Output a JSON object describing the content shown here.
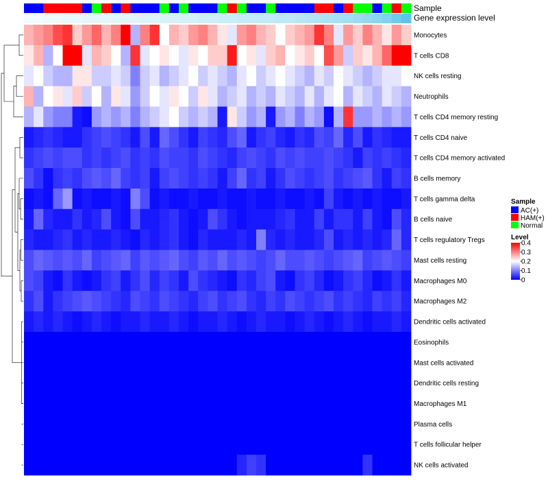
{
  "chart_data": {
    "type": "heatmap",
    "title": "",
    "xlabel": "",
    "ylabel": "",
    "annotation_tracks": [
      {
        "name": "Sample",
        "categories": [
          "AC(+)",
          "AC(+)",
          "HAM(+)",
          "HAM(+)",
          "HAM(+)",
          "HAM(+)",
          "AC(+)",
          "Normal",
          "HAM(+)",
          "AC(+)",
          "HAM(+)",
          "AC(+)",
          "AC(+)",
          "AC(+)",
          "Normal",
          "AC(+)",
          "Normal",
          "AC(+)",
          "AC(+)",
          "AC(+)",
          "Normal",
          "HAM(+)",
          "Normal",
          "AC(+)",
          "AC(+)",
          "Normal",
          "AC(+)",
          "AC(+)",
          "AC(+)",
          "AC(+)",
          "HAM(+)",
          "HAM(+)",
          "AC(+)",
          "HAM(+)",
          "Normal",
          "Normal",
          "AC(+)",
          "Normal",
          "HAM(+)",
          "Normal"
        ]
      },
      {
        "name": "Gene expression level",
        "values": [
          0.02,
          0.02,
          0.03,
          0.03,
          0.04,
          0.04,
          0.05,
          0.05,
          0.05,
          0.06,
          0.06,
          0.06,
          0.07,
          0.07,
          0.08,
          0.08,
          0.09,
          0.09,
          0.1,
          0.1,
          0.11,
          0.11,
          0.12,
          0.12,
          0.13,
          0.13,
          0.14,
          0.14,
          0.15,
          0.16,
          0.17,
          0.18,
          0.19,
          0.2,
          0.22,
          0.24,
          0.26,
          0.28,
          0.32,
          0.36
        ]
      }
    ],
    "rows": [
      "Monocytes",
      "T cells CD8",
      "NK cells resting",
      "Neutrophils",
      "T cells CD4 memory resting",
      "T cells CD4 naive",
      "T cells CD4 memory activated",
      "B cells memory",
      "T cells gamma delta",
      "B cells naive",
      "T cells regulatory  Tregs",
      "Mast cells resting",
      "Macrophages M0",
      "Macrophages M2",
      "Dendritic cells activated",
      "Eosinophils",
      "Mast cells activated",
      "Dendritic cells resting",
      "Macrophages M1",
      "Plasma cells",
      "T cells follicular helper",
      "NK cells activated"
    ],
    "n_columns": 40,
    "values": [
      [
        0.26,
        0.28,
        0.3,
        0.34,
        0.36,
        0.24,
        0.28,
        0.32,
        0.26,
        0.3,
        0.4,
        0.14,
        0.3,
        0.36,
        0.2,
        0.26,
        0.24,
        0.28,
        0.3,
        0.26,
        0.22,
        0.18,
        0.28,
        0.3,
        0.26,
        0.24,
        0.2,
        0.24,
        0.26,
        0.28,
        0.36,
        0.3,
        0.18,
        0.28,
        0.24,
        0.3,
        0.26,
        0.22,
        0.28,
        0.24
      ],
      [
        0.22,
        0.26,
        0.14,
        0.2,
        0.4,
        0.4,
        0.18,
        0.26,
        0.24,
        0.2,
        0.14,
        0.36,
        0.18,
        0.2,
        0.22,
        0.2,
        0.18,
        0.22,
        0.2,
        0.24,
        0.24,
        0.38,
        0.2,
        0.22,
        0.18,
        0.24,
        0.26,
        0.2,
        0.22,
        0.24,
        0.2,
        0.34,
        0.28,
        0.16,
        0.24,
        0.22,
        0.26,
        0.32,
        0.4,
        0.4
      ],
      [
        0.18,
        0.2,
        0.16,
        0.14,
        0.14,
        0.22,
        0.22,
        0.16,
        0.16,
        0.18,
        0.16,
        0.1,
        0.16,
        0.18,
        0.14,
        0.16,
        0.18,
        0.2,
        0.16,
        0.18,
        0.16,
        0.14,
        0.18,
        0.2,
        0.16,
        0.18,
        0.2,
        0.18,
        0.16,
        0.14,
        0.18,
        0.16,
        0.2,
        0.18,
        0.16,
        0.14,
        0.16,
        0.18,
        0.18,
        0.2
      ],
      [
        0.26,
        0.14,
        0.2,
        0.22,
        0.18,
        0.24,
        0.16,
        0.2,
        0.14,
        0.22,
        0.18,
        0.12,
        0.16,
        0.2,
        0.18,
        0.22,
        0.2,
        0.16,
        0.22,
        0.18,
        0.14,
        0.16,
        0.18,
        0.14,
        0.16,
        0.14,
        0.18,
        0.16,
        0.14,
        0.18,
        0.14,
        0.18,
        0.2,
        0.14,
        0.18,
        0.16,
        0.14,
        0.18,
        0.16,
        0.14
      ],
      [
        0.14,
        0.18,
        0.12,
        0.1,
        0.1,
        0.02,
        0.01,
        0.12,
        0.14,
        0.12,
        0.14,
        0.1,
        0.14,
        0.16,
        0.18,
        0.2,
        0.16,
        0.14,
        0.16,
        0.14,
        0.02,
        0.22,
        0.16,
        0.12,
        0.14,
        0.02,
        0.12,
        0.14,
        0.1,
        0.14,
        0.12,
        0.01,
        0.14,
        0.36,
        0.12,
        0.12,
        0.14,
        0.12,
        0.14,
        0.12
      ],
      [
        0.02,
        0.03,
        0.04,
        0.03,
        0.02,
        0.02,
        0.04,
        0.05,
        0.06,
        0.05,
        0.04,
        0.02,
        0.06,
        0.02,
        0.08,
        0.06,
        0.04,
        0.02,
        0.05,
        0.04,
        0.03,
        0.06,
        0.08,
        0.02,
        0.04,
        0.05,
        0.03,
        0.02,
        0.04,
        0.03,
        0.06,
        0.05,
        0.08,
        0.03,
        0.06,
        0.02,
        0.04,
        0.03,
        0.02,
        0.02
      ],
      [
        0.04,
        0.05,
        0.06,
        0.05,
        0.06,
        0.06,
        0.04,
        0.05,
        0.04,
        0.05,
        0.06,
        0.04,
        0.05,
        0.04,
        0.06,
        0.05,
        0.05,
        0.04,
        0.06,
        0.05,
        0.04,
        0.03,
        0.05,
        0.06,
        0.05,
        0.04,
        0.06,
        0.05,
        0.06,
        0.05,
        0.05,
        0.06,
        0.05,
        0.04,
        0.02,
        0.05,
        0.04,
        0.05,
        0.04,
        0.03
      ],
      [
        0.06,
        0.04,
        0.01,
        0.04,
        0.05,
        0.04,
        0.06,
        0.07,
        0.06,
        0.08,
        0.05,
        0.04,
        0.05,
        0.02,
        0.05,
        0.06,
        0.05,
        0.04,
        0.05,
        0.04,
        0.02,
        0.05,
        0.08,
        0.04,
        0.05,
        0.02,
        0.04,
        0.06,
        0.05,
        0.04,
        0.05,
        0.06,
        0.04,
        0.05,
        0.06,
        0.07,
        0.04,
        0.02,
        0.05,
        0.04
      ],
      [
        0.01,
        0.02,
        0.01,
        0.08,
        0.12,
        0.01,
        0.02,
        0.01,
        0.01,
        0.02,
        0.01,
        0.1,
        0.06,
        0.01,
        0.02,
        0.01,
        0.01,
        0.02,
        0.01,
        0.01,
        0.02,
        0.01,
        0.01,
        0.02,
        0.01,
        0.01,
        0.02,
        0.01,
        0.01,
        0.02,
        0.01,
        0.05,
        0.02,
        0.01,
        0.02,
        0.01,
        0.02,
        0.01,
        0.01,
        0.02
      ],
      [
        0.02,
        0.08,
        0.03,
        0.02,
        0.02,
        0.04,
        0.02,
        0.03,
        0.06,
        0.02,
        0.01,
        0.06,
        0.02,
        0.02,
        0.03,
        0.04,
        0.02,
        0.01,
        0.02,
        0.06,
        0.04,
        0.02,
        0.01,
        0.02,
        0.02,
        0.02,
        0.03,
        0.04,
        0.02,
        0.02,
        0.05,
        0.02,
        0.04,
        0.04,
        0.02,
        0.05,
        0.02,
        0.01,
        0.06,
        0.03
      ],
      [
        0.03,
        0.02,
        0.02,
        0.03,
        0.04,
        0.02,
        0.03,
        0.02,
        0.02,
        0.03,
        0.02,
        0.01,
        0.03,
        0.02,
        0.03,
        0.04,
        0.02,
        0.01,
        0.03,
        0.02,
        0.02,
        0.02,
        0.03,
        0.02,
        0.1,
        0.03,
        0.02,
        0.03,
        0.02,
        0.02,
        0.03,
        0.06,
        0.02,
        0.03,
        0.02,
        0.03,
        0.02,
        0.03,
        0.08,
        0.03
      ],
      [
        0.06,
        0.08,
        0.07,
        0.06,
        0.07,
        0.06,
        0.08,
        0.05,
        0.06,
        0.07,
        0.08,
        0.05,
        0.07,
        0.06,
        0.07,
        0.08,
        0.06,
        0.05,
        0.07,
        0.06,
        0.08,
        0.06,
        0.07,
        0.06,
        0.05,
        0.06,
        0.08,
        0.06,
        0.06,
        0.07,
        0.06,
        0.05,
        0.06,
        0.07,
        0.08,
        0.05,
        0.06,
        0.07,
        0.06,
        0.05
      ],
      [
        0.06,
        0.05,
        0.02,
        0.01,
        0.04,
        0.02,
        0.01,
        0.02,
        0.04,
        0.05,
        0.02,
        0.04,
        0.06,
        0.03,
        0.05,
        0.04,
        0.02,
        0.06,
        0.04,
        0.03,
        0.02,
        0.01,
        0.04,
        0.03,
        0.05,
        0.06,
        0.02,
        0.01,
        0.04,
        0.05,
        0.03,
        0.01,
        0.02,
        0.04,
        0.05,
        0.03,
        0.01,
        0.02,
        0.04,
        0.02
      ],
      [
        0.04,
        0.06,
        0.02,
        0.04,
        0.05,
        0.06,
        0.07,
        0.06,
        0.05,
        0.04,
        0.03,
        0.06,
        0.05,
        0.04,
        0.06,
        0.05,
        0.04,
        0.03,
        0.05,
        0.06,
        0.04,
        0.05,
        0.06,
        0.04,
        0.03,
        0.05,
        0.04,
        0.06,
        0.05,
        0.04,
        0.05,
        0.06,
        0.04,
        0.05,
        0.04,
        0.03,
        0.05,
        0.04,
        0.05,
        0.03
      ],
      [
        0.02,
        0.03,
        0.02,
        0.03,
        0.02,
        0.01,
        0.02,
        0.03,
        0.02,
        0.01,
        0.02,
        0.02,
        0.03,
        0.02,
        0.02,
        0.03,
        0.02,
        0.01,
        0.02,
        0.02,
        0.03,
        0.02,
        0.01,
        0.02,
        0.03,
        0.02,
        0.02,
        0.01,
        0.02,
        0.03,
        0.02,
        0.01,
        0.02,
        0.03,
        0.02,
        0.01,
        0.02,
        0.02,
        0.03,
        0.02
      ],
      [
        0,
        0,
        0,
        0,
        0,
        0,
        0,
        0,
        0,
        0,
        0,
        0,
        0,
        0,
        0,
        0,
        0,
        0,
        0,
        0,
        0,
        0,
        0,
        0,
        0,
        0,
        0,
        0,
        0,
        0,
        0,
        0,
        0,
        0,
        0,
        0,
        0,
        0,
        0,
        0
      ],
      [
        0,
        0,
        0,
        0,
        0,
        0,
        0,
        0,
        0,
        0,
        0,
        0,
        0,
        0,
        0,
        0,
        0,
        0,
        0,
        0,
        0,
        0,
        0,
        0,
        0,
        0,
        0,
        0,
        0,
        0,
        0,
        0,
        0,
        0,
        0,
        0,
        0,
        0,
        0,
        0
      ],
      [
        0,
        0,
        0,
        0,
        0,
        0,
        0,
        0,
        0,
        0,
        0,
        0,
        0,
        0,
        0,
        0,
        0,
        0,
        0,
        0,
        0,
        0,
        0,
        0,
        0,
        0,
        0,
        0,
        0,
        0,
        0,
        0,
        0,
        0,
        0,
        0,
        0,
        0,
        0,
        0
      ],
      [
        0,
        0,
        0,
        0,
        0,
        0,
        0,
        0,
        0,
        0,
        0,
        0,
        0,
        0,
        0,
        0,
        0,
        0,
        0,
        0,
        0,
        0,
        0,
        0,
        0,
        0,
        0,
        0,
        0,
        0,
        0,
        0,
        0,
        0,
        0,
        0,
        0,
        0,
        0,
        0
      ],
      [
        0,
        0,
        0,
        0,
        0,
        0,
        0,
        0,
        0,
        0,
        0,
        0,
        0,
        0,
        0,
        0,
        0,
        0,
        0,
        0,
        0,
        0,
        0,
        0,
        0,
        0,
        0,
        0,
        0,
        0,
        0,
        0,
        0,
        0,
        0,
        0,
        0,
        0,
        0,
        0
      ],
      [
        0,
        0,
        0,
        0,
        0,
        0,
        0,
        0,
        0,
        0,
        0,
        0,
        0,
        0,
        0,
        0,
        0,
        0,
        0,
        0,
        0,
        0,
        0,
        0,
        0,
        0,
        0,
        0,
        0,
        0,
        0,
        0,
        0,
        0,
        0,
        0,
        0,
        0,
        0,
        0
      ],
      [
        0,
        0,
        0,
        0,
        0,
        0,
        0,
        0,
        0,
        0,
        0,
        0,
        0,
        0,
        0,
        0,
        0,
        0,
        0,
        0,
        0,
        0,
        0.03,
        0.05,
        0.04,
        0,
        0,
        0,
        0,
        0,
        0,
        0,
        0,
        0,
        0,
        0.04,
        0,
        0,
        0,
        0
      ]
    ],
    "color_scale": {
      "min": 0,
      "mid": 0.2,
      "max": 0.4,
      "low_color": "#0000ff",
      "mid_color": "#ffffff",
      "high_color": "#ff0000"
    },
    "legend": {
      "position": "right",
      "sample": {
        "title": "Sample",
        "items": [
          {
            "label": "AC(+)",
            "color": "#0000ff"
          },
          {
            "label": "HAM(+)",
            "color": "#ff0000"
          },
          {
            "label": "Normal",
            "color": "#00ff00"
          }
        ]
      },
      "level": {
        "title": "Level",
        "ticks": [
          {
            "label": "0.4",
            "value": 0.4
          },
          {
            "label": "0.3",
            "value": 0.3
          },
          {
            "label": "0.2",
            "value": 0.2
          },
          {
            "label": "0.1",
            "value": 0.1
          },
          {
            "label": "0",
            "value": 0
          }
        ]
      }
    },
    "dendrogram": "row",
    "gene_expression_colors": {
      "low": "#f2fbfd",
      "high": "#5ec5e9"
    }
  }
}
